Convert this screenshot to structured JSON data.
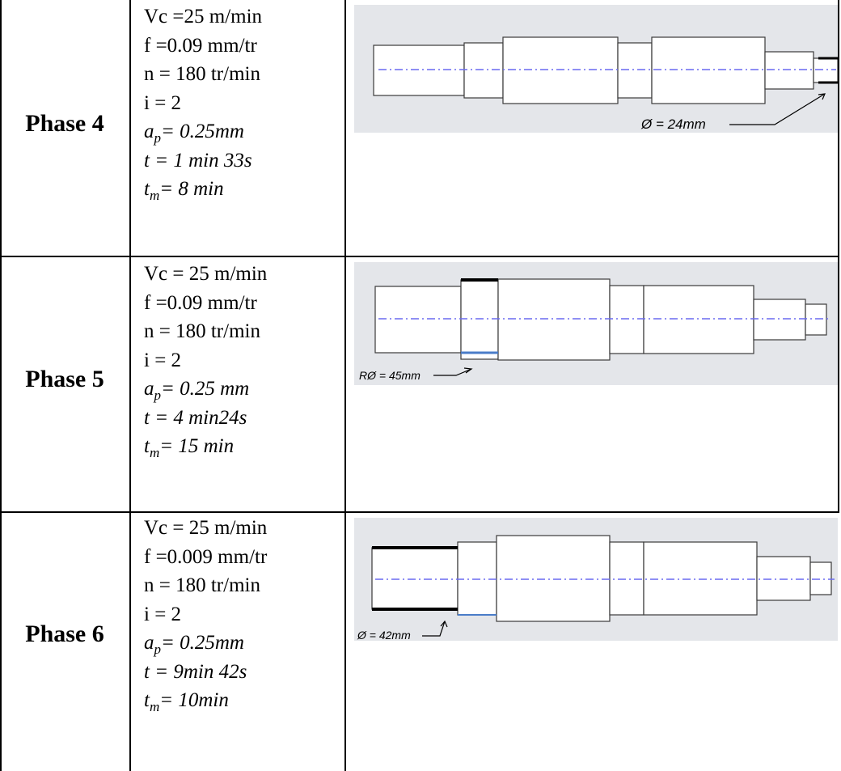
{
  "phases": [
    {
      "label": "Phase 4",
      "vc": "Vc =25 m/min",
      "f": "f =0.09 mm/tr",
      "n": "n = 180 tr/min",
      "i": "i = 2",
      "ap_sym": "a",
      "ap_sub": "p",
      "ap_val": "= 0.25mm",
      "t": "t = 1 min 33s",
      "tm_sym": "t",
      "tm_sub": "m",
      "tm_val": "= 8 min",
      "dim_label": "Ø = 24mm"
    },
    {
      "label": "Phase 5",
      "vc": "Vc = 25 m/min",
      "f": "f =0.09 mm/tr",
      "n": "n = 180 tr/min",
      "i": "i = 2",
      "ap_sym": "a",
      "ap_sub": "p",
      "ap_val": "= 0.25 mm",
      "t": "t = 4 min24s",
      "tm_sym": "t",
      "tm_sub": "m",
      "tm_val": "= 15 min",
      "dim_label": "RØ = 45mm"
    },
    {
      "label": "Phase 6",
      "vc": "Vc = 25 m/min",
      "f": "f =0.009 mm/tr",
      "n": "n = 180 tr/min",
      "i": "i = 2",
      "ap_sym": "a",
      "ap_sub": "p",
      "ap_val": "= 0.25mm",
      "t": "t = 9min 42s",
      "tm_sym": "t",
      "tm_sub": "m",
      "tm_val": "= 10min",
      "dim_label": "Ø = 42mm"
    }
  ],
  "colors": {
    "drawing_bg": "#e4e6ea",
    "centerline": "#6a6af0",
    "shaft_stroke": "#3a3a3a",
    "highlight_blue": "#4a7cc8"
  }
}
